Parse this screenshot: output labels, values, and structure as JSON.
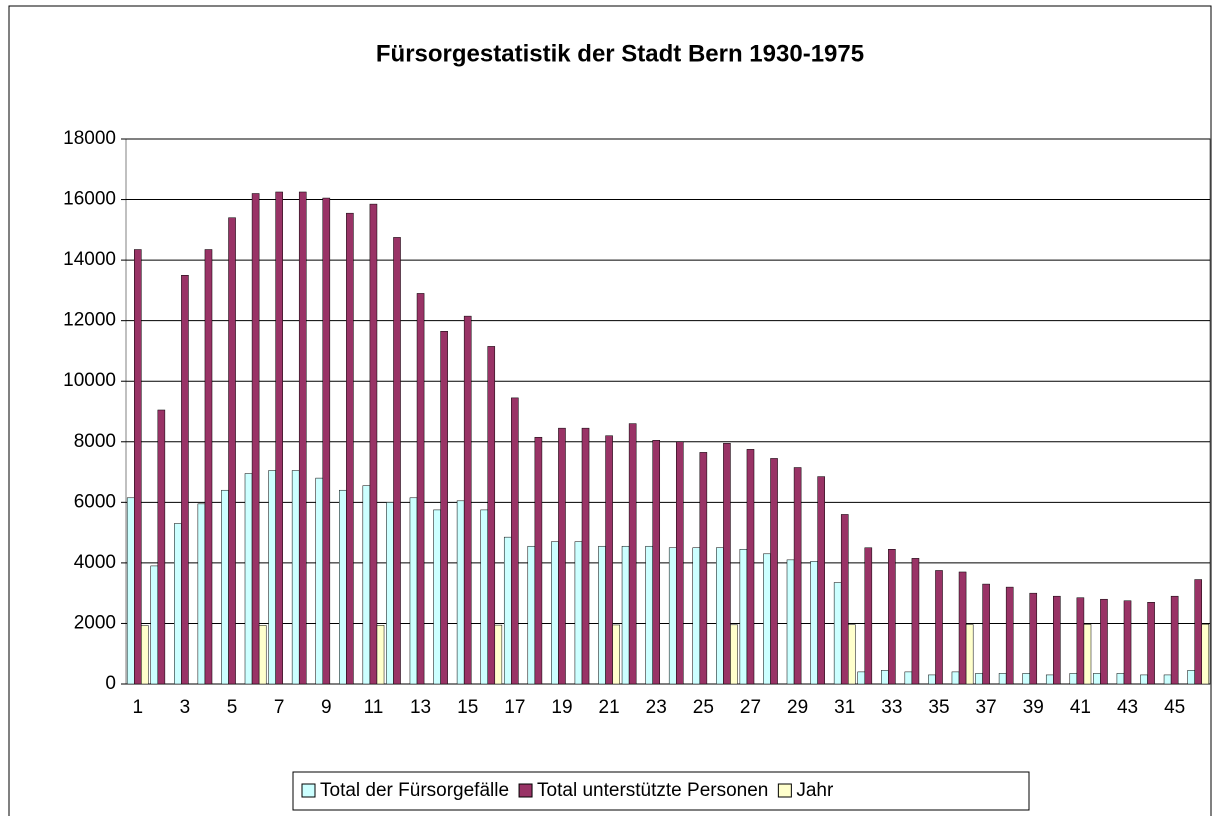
{
  "chart_data": {
    "type": "bar",
    "title": "Fürsorgestatistik der Stadt Bern 1930-1975",
    "categories": [
      1,
      null,
      3,
      null,
      5,
      null,
      7,
      null,
      9,
      null,
      11,
      null,
      13,
      null,
      15,
      null,
      17,
      null,
      19,
      null,
      21,
      null,
      23,
      null,
      25,
      null,
      27,
      null,
      29,
      null,
      31,
      null,
      33,
      null,
      35,
      null,
      37,
      null,
      39,
      null,
      41,
      null,
      43,
      null,
      45,
      null
    ],
    "series": [
      {
        "name": "Total der Fürsorgefälle",
        "color": "#ccffff",
        "values": [
          6150,
          3900,
          5300,
          5950,
          6400,
          6950,
          7050,
          7050,
          6800,
          6400,
          6550,
          6000,
          6150,
          5750,
          6050,
          5750,
          4850,
          4550,
          4700,
          4700,
          4550,
          4550,
          4550,
          4500,
          4500,
          4500,
          4450,
          4300,
          4100,
          4050,
          3350,
          400,
          450,
          400,
          300,
          400,
          350,
          350,
          350,
          300,
          350,
          350,
          350,
          300,
          300,
          450
        ]
      },
      {
        "name": "Total unterstützte Personen",
        "color": "#993366",
        "values": [
          14350,
          9050,
          13500,
          14350,
          15400,
          16200,
          16250,
          16250,
          16050,
          15550,
          15850,
          14750,
          12900,
          11650,
          12150,
          11150,
          9450,
          8150,
          8450,
          8450,
          8200,
          8600,
          8050,
          8000,
          7650,
          7950,
          7750,
          7450,
          7150,
          6850,
          5600,
          4500,
          4450,
          4150,
          3750,
          3700,
          3300,
          3200,
          3000,
          2900,
          2850,
          2800,
          2750,
          2700,
          2900,
          3450
        ]
      },
      {
        "name": "Jahr",
        "color": "#ffffcc",
        "values": [
          1930,
          null,
          null,
          null,
          null,
          1935,
          null,
          null,
          null,
          null,
          1940,
          null,
          null,
          null,
          null,
          1945,
          null,
          null,
          null,
          null,
          1950,
          null,
          null,
          null,
          null,
          1955,
          null,
          null,
          null,
          null,
          1960,
          null,
          null,
          null,
          null,
          1965,
          null,
          null,
          null,
          null,
          1970,
          null,
          null,
          null,
          null,
          1975
        ]
      }
    ],
    "ylim": [
      0,
      18000
    ],
    "yticks": [
      0,
      2000,
      4000,
      6000,
      8000,
      10000,
      12000,
      14000,
      16000,
      18000
    ],
    "grid": true,
    "legend": "bottom"
  }
}
